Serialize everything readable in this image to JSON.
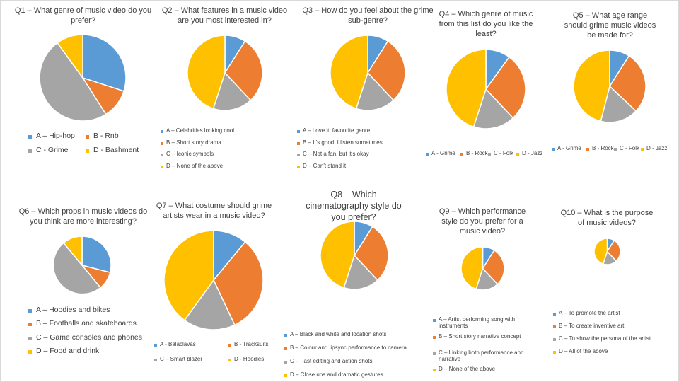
{
  "colors": {
    "A": "#5b9bd5",
    "B": "#ed7d31",
    "C": "#a5a5a5",
    "D": "#ffc000"
  },
  "chart_data": [
    {
      "id": "q1",
      "type": "pie",
      "title": "Q1 – What genre of music video do you prefer?",
      "categories": [
        "A – Hip-hop",
        "B - Rnb",
        "C - Grime",
        "D - Bashment"
      ],
      "values": [
        30,
        11,
        49,
        10
      ]
    },
    {
      "id": "q2",
      "type": "pie",
      "title": "Q2 – What features in a music video are you most interested in?",
      "categories": [
        "A – Celebrities looking cool",
        "B – Short story drama",
        "C – Iconic symbols",
        "D – None of the above"
      ],
      "values": [
        9,
        29,
        17,
        45
      ]
    },
    {
      "id": "q3",
      "type": "pie",
      "title": "Q3 – How do you feel about the grime sub-genre?",
      "categories": [
        "A – Love it, favourite genre",
        "B – It's good, I listen sometimes",
        "C – Not a fan, but it's okay",
        "D – Can't stand it"
      ],
      "values": [
        9,
        29,
        17,
        45
      ]
    },
    {
      "id": "q4",
      "type": "pie",
      "title": "Q4 – Which genre of music from this list do you like the least?",
      "categories": [
        "A - Grime",
        "B - Rock",
        "C - Folk",
        "D - Jazz"
      ],
      "values": [
        10,
        28,
        17,
        45
      ]
    },
    {
      "id": "q5",
      "type": "pie",
      "title": "Q5 – What age range should grime music videos be made for?",
      "categories": [
        "A - Grime",
        "B - Rock",
        "C - Folk",
        "D - Jazz"
      ],
      "values": [
        9,
        28,
        17,
        46
      ]
    },
    {
      "id": "q6",
      "type": "pie",
      "title": "Q6 – Which props in music videos do you think are more interesting?",
      "categories": [
        "A – Hoodies and bikes",
        "B – Footballs and skateboards",
        "C – Game consoles and phones",
        "D – Food and drink"
      ],
      "values": [
        29,
        10,
        50,
        11
      ]
    },
    {
      "id": "q7",
      "type": "pie",
      "title": "Q7 – What costume should grime artists wear in a music video?",
      "categories": [
        "A - Balaclavas",
        "B - Tracksuits",
        "C – Smart blazer",
        "D - Hoodies"
      ],
      "values": [
        11,
        32,
        17,
        40
      ]
    },
    {
      "id": "q8",
      "type": "pie",
      "title": "Q8 – Which cinematography style do you prefer?",
      "categories": [
        "A – Black and white and location shots",
        "B – Colour and lipsync performance to camera",
        "C – Fast editing and action shots",
        "D – Close ups and dramatic gestures"
      ],
      "values": [
        9,
        29,
        17,
        45
      ]
    },
    {
      "id": "q9",
      "type": "pie",
      "title": "Q9 – Which performance style do you prefer for a music video?",
      "categories": [
        "A – Artist performing song with instruments",
        "B – Short story narrative concept",
        "C – Linking both performance and narrative",
        "D – None of the above"
      ],
      "values": [
        9,
        29,
        17,
        45
      ]
    },
    {
      "id": "q10",
      "type": "pie",
      "title": "Q10 – What is the purpose of music videos?",
      "categories": [
        "A – To promote the artist",
        "B – To create inventive art",
        "C – To show the persona of the artist",
        "D – All of the above"
      ],
      "values": [
        9,
        29,
        17,
        45
      ]
    }
  ]
}
